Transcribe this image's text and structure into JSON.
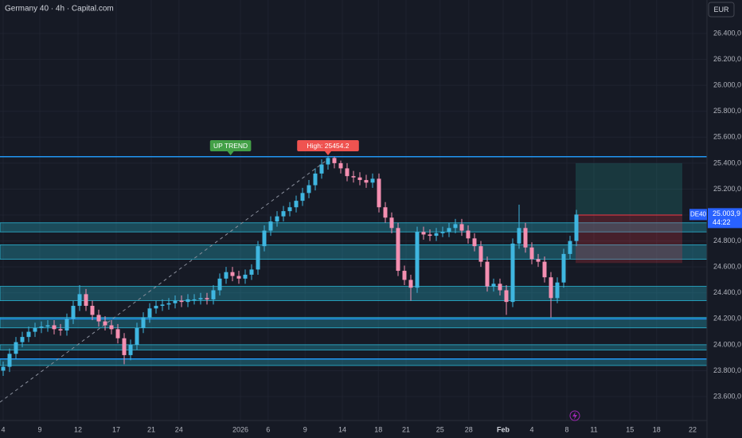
{
  "chart_data": {
    "type": "candlestick",
    "title": "Germany 40 · 4h · Capital.com",
    "currency": "EUR",
    "symbol": "DE40",
    "last_price": {
      "value": 25003.9,
      "label": "25.003,9"
    },
    "countdown": "44:22",
    "up_color": "#3fb6e0",
    "down_color": "#f48fb1",
    "open": [
      23800,
      23830,
      23930,
      24020,
      24060,
      24100,
      24130,
      24140,
      24150,
      24120,
      24110,
      24200,
      24300,
      24390,
      24300,
      24230,
      24180,
      24150,
      24120,
      24050,
      23920,
      24000,
      24130,
      24210,
      24280,
      24300,
      24310,
      24320,
      24340,
      24330,
      24350,
      24350,
      24360,
      24350,
      24420,
      24510,
      24560,
      24530,
      24510,
      24540,
      24580,
      24760,
      24880,
      24950,
      24990,
      25030,
      25060,
      25110,
      25170,
      25230,
      25320,
      25390,
      25440,
      25400,
      25360,
      25300,
      25290,
      25270,
      25250,
      25280,
      25060,
      24980,
      24900,
      24570,
      24500,
      24440,
      24870,
      24850,
      24840,
      24860,
      24870,
      24900,
      24930,
      24880,
      24820,
      24760,
      24640,
      24450,
      24470,
      24420,
      24330,
      24780,
      24900,
      24750,
      24660,
      24640,
      24520,
      24360,
      24480,
      24700,
      24800
    ],
    "high": [
      23870,
      23970,
      24060,
      24100,
      24140,
      24170,
      24180,
      24190,
      24190,
      24160,
      24240,
      24340,
      24460,
      24430,
      24340,
      24270,
      24220,
      24190,
      24160,
      24090,
      24040,
      24170,
      24250,
      24320,
      24340,
      24350,
      24360,
      24380,
      24380,
      24390,
      24390,
      24400,
      24400,
      24460,
      24550,
      24600,
      24600,
      24570,
      24580,
      24620,
      24800,
      24920,
      24990,
      25030,
      25070,
      25100,
      25150,
      25210,
      25270,
      25360,
      25430,
      25454.2,
      25450,
      25420,
      25400,
      25340,
      25330,
      25310,
      25320,
      25320,
      25100,
      25020,
      24940,
      24610,
      24540,
      24910,
      24910,
      24890,
      24900,
      24910,
      24940,
      24970,
      24970,
      24920,
      24860,
      24800,
      24680,
      24510,
      24510,
      24460,
      24820,
      25080,
      24940,
      24790,
      24700,
      24680,
      24560,
      24520,
      24740,
      24840,
      25040
    ],
    "low": [
      23760,
      23790,
      23890,
      23980,
      24020,
      24060,
      24090,
      24100,
      24080,
      24070,
      24070,
      24160,
      24260,
      24260,
      24190,
      24140,
      24110,
      24080,
      24010,
      23850,
      23880,
      23960,
      24090,
      24170,
      24240,
      24260,
      24270,
      24280,
      24290,
      24290,
      24310,
      24310,
      24310,
      24310,
      24380,
      24470,
      24490,
      24470,
      24470,
      24500,
      24540,
      24720,
      24840,
      24910,
      24950,
      24990,
      25020,
      25070,
      25130,
      25190,
      25280,
      25350,
      25360,
      25320,
      25260,
      25250,
      25230,
      25210,
      25210,
      25020,
      24940,
      24860,
      24530,
      24460,
      24340,
      24400,
      24810,
      24800,
      24800,
      24830,
      24830,
      24860,
      24840,
      24780,
      24720,
      24600,
      24410,
      24410,
      24380,
      24230,
      24290,
      24740,
      24710,
      24620,
      24600,
      24480,
      24210,
      24320,
      24440,
      24660,
      24760
    ],
    "close": [
      23830,
      23930,
      24020,
      24060,
      24100,
      24130,
      24140,
      24150,
      24120,
      24110,
      24200,
      24300,
      24390,
      24300,
      24230,
      24180,
      24150,
      24120,
      24050,
      23920,
      24000,
      24130,
      24210,
      24280,
      24300,
      24310,
      24320,
      24340,
      24330,
      24350,
      24350,
      24360,
      24350,
      24420,
      24510,
      24560,
      24530,
      24510,
      24540,
      24580,
      24760,
      24880,
      24950,
      24990,
      25030,
      25060,
      25110,
      25170,
      25230,
      25320,
      25390,
      25440,
      25400,
      25360,
      25300,
      25290,
      25270,
      25250,
      25280,
      25060,
      24980,
      24900,
      24570,
      24500,
      24440,
      24870,
      24850,
      24840,
      24860,
      24870,
      24900,
      24930,
      24880,
      24820,
      24760,
      24640,
      24450,
      24470,
      24420,
      24330,
      24780,
      24900,
      24750,
      24660,
      24640,
      24520,
      24360,
      24480,
      24700,
      24800,
      25003.9
    ],
    "zones": [
      [
        24870,
        24940
      ],
      [
        24660,
        24770
      ],
      [
        24340,
        24450
      ],
      [
        24130,
        24210
      ],
      [
        23960,
        24000
      ],
      [
        23840,
        23890
      ]
    ],
    "levels": [
      25450,
      24200,
      23890
    ],
    "position": {
      "entry": 25000,
      "target": 25400,
      "stop": 24630
    },
    "annotations": [
      {
        "text": "UP TREND",
        "index": 35.7,
        "color": "#43a047"
      },
      {
        "text": "High: 25454.2",
        "index": 51,
        "color": "#ef5350"
      }
    ],
    "xlim": [
      -0.5,
      110.5
    ],
    "ylim": [
      23416,
      26658
    ],
    "xticks": [
      {
        "value": 0,
        "label": "4"
      },
      {
        "value": 5.75,
        "label": "9"
      },
      {
        "value": 11.75,
        "label": "12"
      },
      {
        "value": 17.75,
        "label": "17"
      },
      {
        "value": 23.25,
        "label": "21"
      },
      {
        "value": 27.6,
        "label": "24"
      },
      {
        "value": 37.25,
        "label": "2026"
      },
      {
        "value": 41.6,
        "label": "6"
      },
      {
        "value": 47.4,
        "label": "9"
      },
      {
        "value": 53.25,
        "label": "14"
      },
      {
        "value": 58.9,
        "label": "18"
      },
      {
        "value": 63.25,
        "label": "21"
      },
      {
        "value": 68.6,
        "label": "25"
      },
      {
        "value": 73.1,
        "label": "28"
      },
      {
        "value": 78.5,
        "label": "Feb"
      },
      {
        "value": 83,
        "label": "4"
      },
      {
        "value": 88.5,
        "label": "8"
      },
      {
        "value": 92.75,
        "label": "11"
      },
      {
        "value": 98.4,
        "label": "15"
      },
      {
        "value": 102.6,
        "label": "18"
      },
      {
        "value": 108.25,
        "label": "22"
      }
    ],
    "yticks": [
      {
        "value": 23600,
        "label": "23.600,0"
      },
      {
        "value": 23800,
        "label": "23.800,0"
      },
      {
        "value": 24000,
        "label": "24.000,0"
      },
      {
        "value": 24200,
        "label": "24.200,0"
      },
      {
        "value": 24400,
        "label": "24.400,0"
      },
      {
        "value": 24600,
        "label": "24.600,0"
      },
      {
        "value": 24800,
        "label": "24.800,0"
      },
      {
        "value": 25000,
        "label": "25.000,0"
      },
      {
        "value": 25200,
        "label": "25.200,0"
      },
      {
        "value": 25400,
        "label": "25.400,0"
      },
      {
        "value": 25600,
        "label": "25.600,0"
      },
      {
        "value": 25800,
        "label": "25.800,0"
      },
      {
        "value": 26000,
        "label": "26.000,0"
      },
      {
        "value": 26200,
        "label": "26.200,0"
      },
      {
        "value": 26400,
        "label": "26.400,0"
      }
    ],
    "grid": true
  }
}
